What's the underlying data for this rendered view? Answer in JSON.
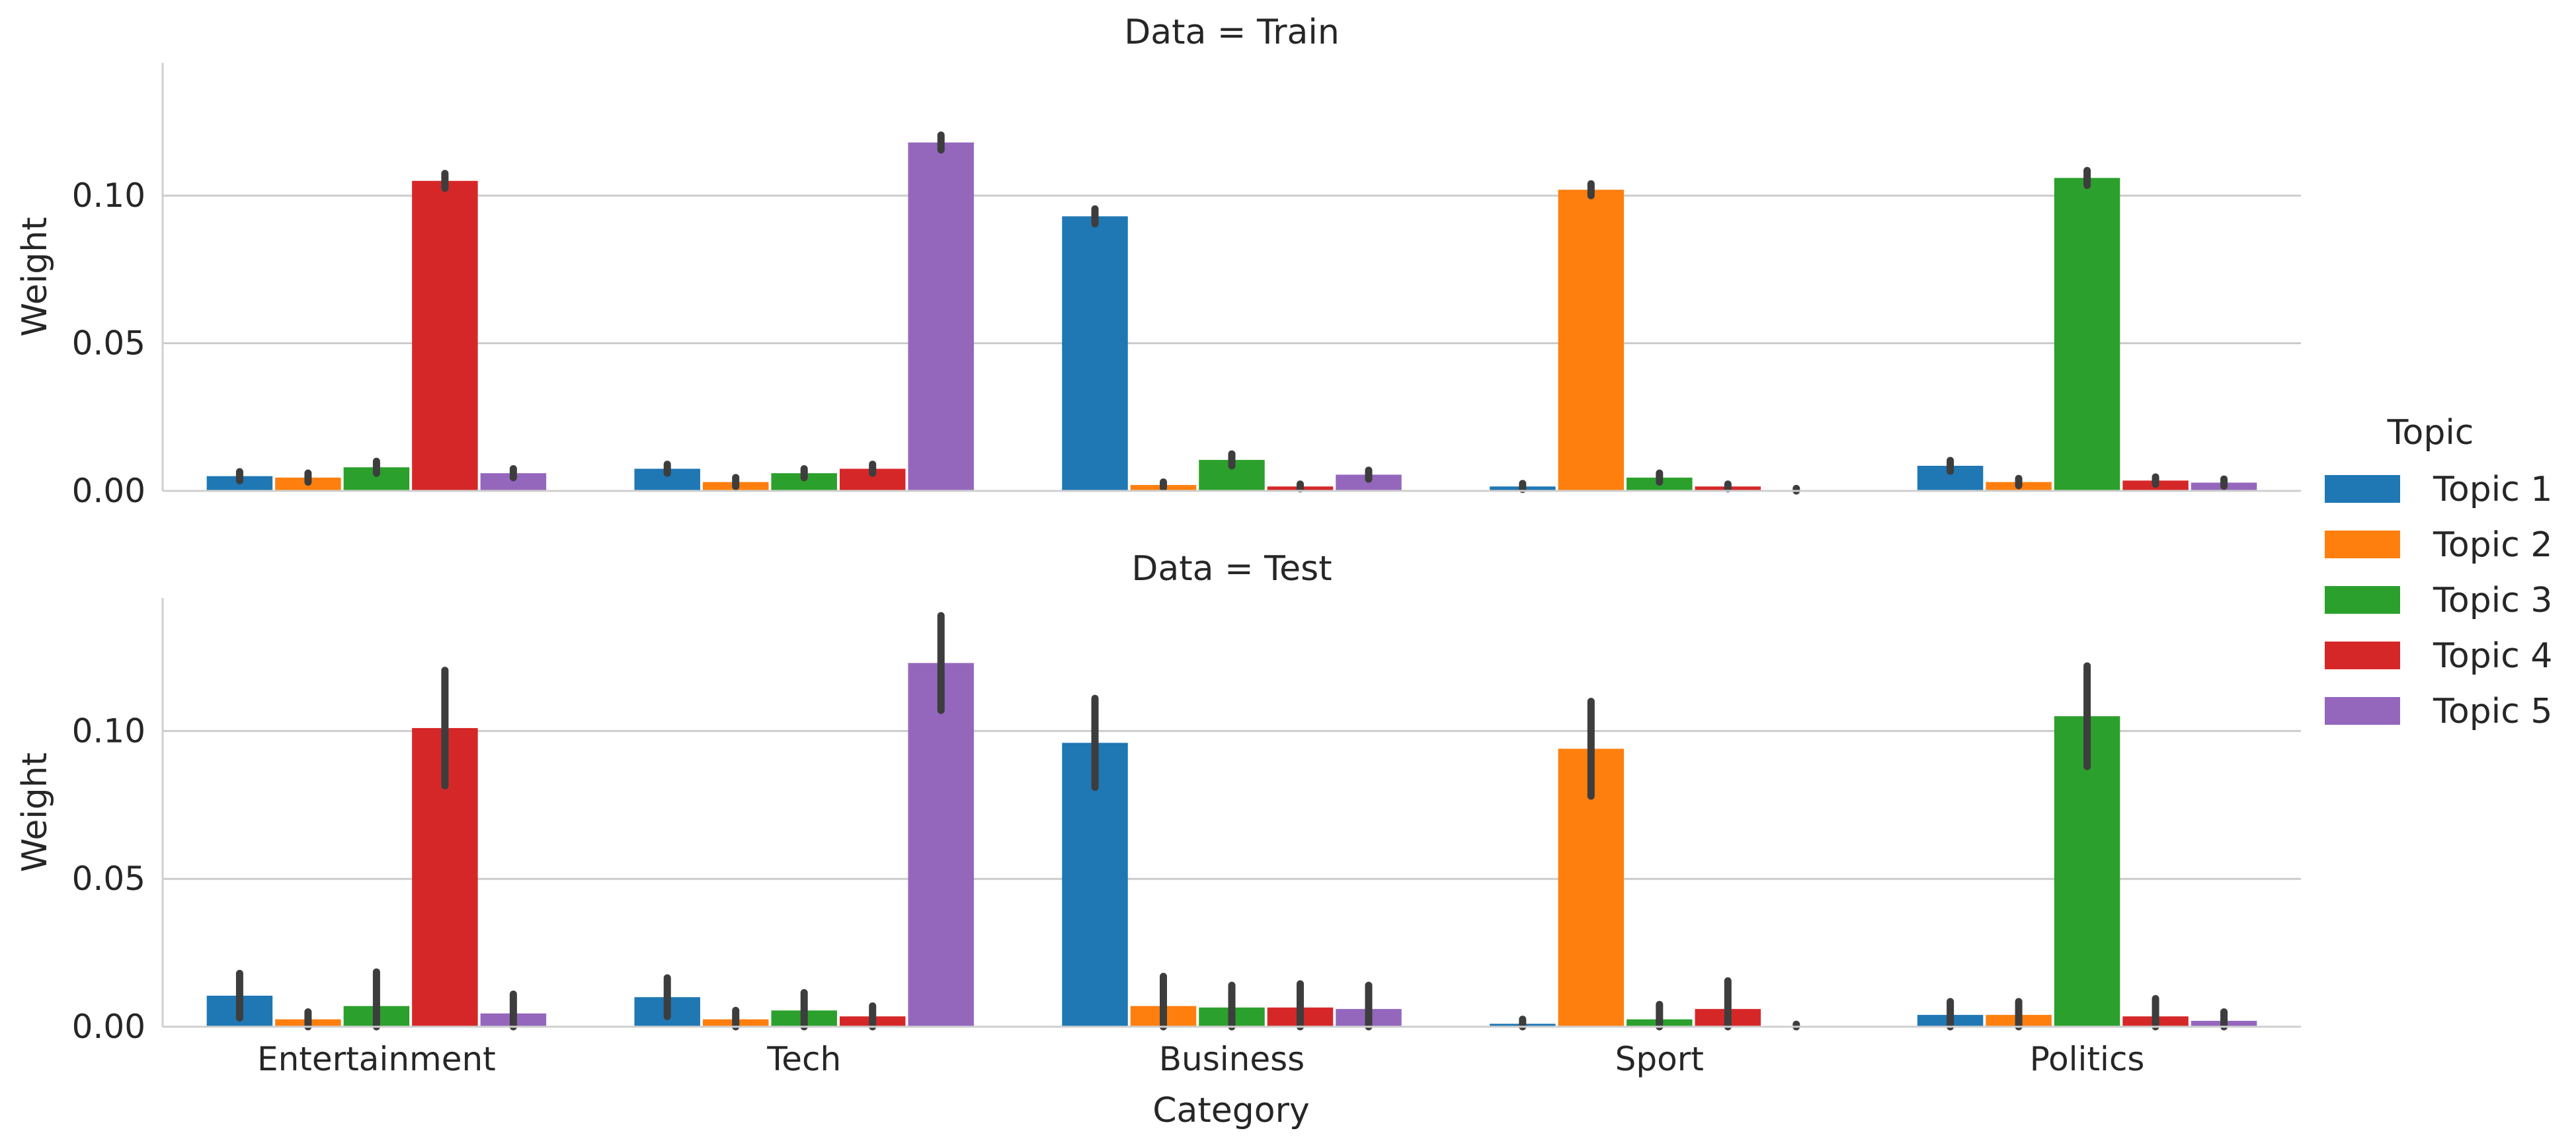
{
  "chart_data": {
    "type": "bar",
    "xlabel": "Category",
    "ylabel": "Weight",
    "categories": [
      "Entertainment",
      "Tech",
      "Business",
      "Sport",
      "Politics"
    ],
    "legend": {
      "title": "Topic",
      "placement": "right"
    },
    "ylim": [
      0,
      0.145
    ],
    "yticks": [
      "0.00",
      "0.05",
      "0.10"
    ],
    "ytick_values": [
      0.0,
      0.05,
      0.1
    ],
    "grid": "horizontal",
    "colors": [
      "#1f77b4",
      "#ff7f0e",
      "#2ca02c",
      "#d62728",
      "#9467bd"
    ],
    "panels": [
      {
        "title": "Data = Train",
        "series": [
          {
            "name": "Topic 1",
            "values": [
              0.005,
              0.0075,
              0.093,
              0.0015,
              0.0085
            ],
            "err": [
              0.0015,
              0.0015,
              0.0025,
              0.001,
              0.0018
            ]
          },
          {
            "name": "Topic 2",
            "values": [
              0.0045,
              0.003,
              0.002,
              0.102,
              0.003
            ],
            "err": [
              0.0015,
              0.0015,
              0.001,
              0.002,
              0.0012
            ]
          },
          {
            "name": "Topic 3",
            "values": [
              0.008,
              0.006,
              0.0105,
              0.0045,
              0.106
            ],
            "err": [
              0.002,
              0.0015,
              0.002,
              0.0015,
              0.0025
            ]
          },
          {
            "name": "Topic 4",
            "values": [
              0.105,
              0.0075,
              0.0015,
              0.0015,
              0.0035
            ],
            "err": [
              0.0025,
              0.0015,
              0.0008,
              0.0008,
              0.0012
            ]
          },
          {
            "name": "Topic 5",
            "values": [
              0.006,
              0.118,
              0.0055,
              0.0,
              0.0028
            ],
            "err": [
              0.0015,
              0.0025,
              0.0015,
              0.0008,
              0.0012
            ]
          }
        ]
      },
      {
        "title": "Data = Test",
        "series": [
          {
            "name": "Topic 1",
            "values": [
              0.0105,
              0.01,
              0.096,
              0.001,
              0.004
            ],
            "err": [
              0.0075,
              0.0065,
              0.015,
              0.0015,
              0.0045
            ]
          },
          {
            "name": "Topic 2",
            "values": [
              0.0025,
              0.0025,
              0.007,
              0.094,
              0.004
            ],
            "err": [
              0.0025,
              0.003,
              0.01,
              0.016,
              0.0045
            ]
          },
          {
            "name": "Topic 3",
            "values": [
              0.007,
              0.0055,
              0.0065,
              0.0025,
              0.105
            ],
            "err": [
              0.0115,
              0.006,
              0.0075,
              0.005,
              0.017
            ]
          },
          {
            "name": "Topic 4",
            "values": [
              0.101,
              0.0035,
              0.0065,
              0.006,
              0.0035
            ],
            "err": [
              0.0195,
              0.0035,
              0.008,
              0.0095,
              0.006
            ]
          },
          {
            "name": "Topic 5",
            "values": [
              0.0045,
              0.123,
              0.006,
              0.0,
              0.002
            ],
            "err": [
              0.0065,
              0.016,
              0.008,
              0.0008,
              0.003
            ]
          }
        ]
      }
    ]
  }
}
